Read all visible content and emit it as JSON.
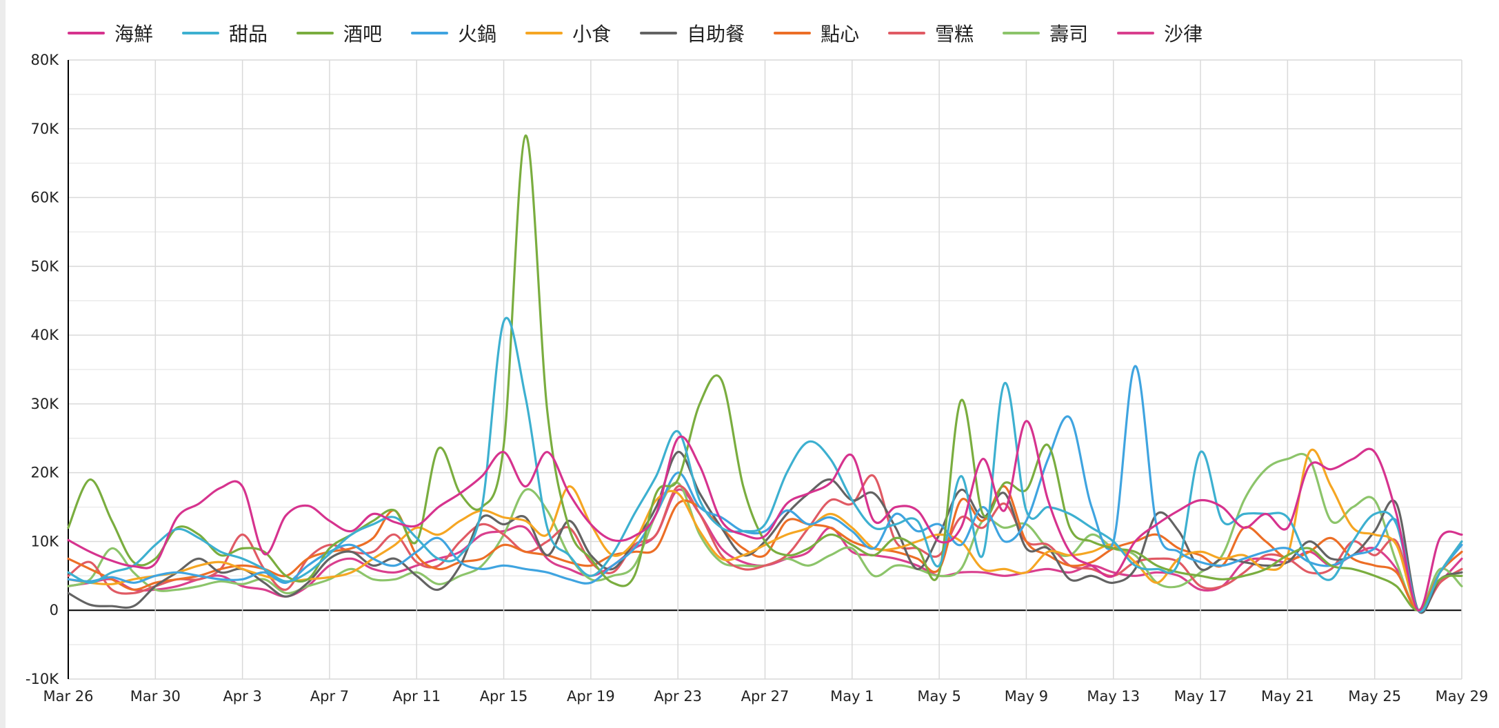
{
  "chart_data": {
    "type": "line",
    "title": "",
    "xlabel": "",
    "ylabel": "",
    "ylim": [
      -10000,
      80000
    ],
    "yticks": [
      -10000,
      0,
      10000,
      20000,
      30000,
      40000,
      50000,
      60000,
      70000,
      80000
    ],
    "ytick_labels": [
      "-10K",
      "0",
      "10K",
      "20K",
      "30K",
      "40K",
      "50K",
      "60K",
      "70K",
      "80K"
    ],
    "xrange_days": [
      0,
      64
    ],
    "xtick_labels": [
      {
        "day": 0,
        "label": "Mar 26"
      },
      {
        "day": 4,
        "label": "Mar 30"
      },
      {
        "day": 8,
        "label": "Apr 3"
      },
      {
        "day": 12,
        "label": "Apr 7"
      },
      {
        "day": 16,
        "label": "Apr 11"
      },
      {
        "day": 20,
        "label": "Apr 15"
      },
      {
        "day": 24,
        "label": "Apr 19"
      },
      {
        "day": 28,
        "label": "Apr 23"
      },
      {
        "day": 32,
        "label": "Apr 27"
      },
      {
        "day": 36,
        "label": "May 1"
      },
      {
        "day": 40,
        "label": "May 5"
      },
      {
        "day": 44,
        "label": "May 9"
      },
      {
        "day": 48,
        "label": "May 13"
      },
      {
        "day": 52,
        "label": "May 17"
      },
      {
        "day": 56,
        "label": "May 21"
      },
      {
        "day": 60,
        "label": "May 25"
      },
      {
        "day": 64,
        "label": "May 29"
      }
    ],
    "grid": true,
    "legend_position": "top-left",
    "series": [
      {
        "name": "海鮮",
        "color": "#d6338e",
        "values": [
          10200,
          8500,
          7200,
          6400,
          6800,
          13500,
          15500,
          17800,
          18000,
          8200,
          13800,
          15200,
          13000,
          11500,
          14000,
          12800,
          12300,
          15000,
          17000,
          19500,
          23000,
          18000,
          23000,
          17000,
          12500,
          10200,
          10800,
          14000,
          25000,
          21000,
          13000,
          11000,
          10800,
          15500,
          17000,
          18500,
          22500,
          13000,
          15000,
          14500,
          10000,
          12000,
          22000,
          14500,
          27500,
          16000,
          8500,
          6500,
          5000,
          10000,
          12500,
          14500,
          16000,
          15000,
          12000,
          14000,
          12000,
          21000,
          20500,
          22000,
          23000,
          14000,
          0,
          10500,
          11000
        ]
      },
      {
        "name": "甜品",
        "color": "#3db0d0",
        "values": [
          5500,
          4000,
          5500,
          6500,
          9500,
          11800,
          10500,
          8500,
          7500,
          6000,
          4200,
          5500,
          8200,
          11000,
          12500,
          13500,
          10500,
          7500,
          8000,
          15000,
          42000,
          31000,
          12000,
          8000,
          5000,
          8200,
          14000,
          19500,
          26000,
          16000,
          12000,
          11500,
          12500,
          20000,
          24500,
          22000,
          16000,
          12000,
          12500,
          13000,
          6500,
          19500,
          8000,
          33000,
          14500,
          15000,
          14000,
          12000,
          10000,
          6500,
          6000,
          7000,
          23000,
          13000,
          14000,
          14000,
          13500,
          7000,
          4500,
          10000,
          14000,
          12500,
          0,
          5500,
          10000
        ]
      },
      {
        "name": "酒吧",
        "color": "#7aad3f",
        "values": [
          12000,
          19000,
          13000,
          7000,
          7500,
          12000,
          11000,
          8000,
          9000,
          8500,
          5000,
          4500,
          9000,
          11000,
          13000,
          14500,
          10000,
          23500,
          17000,
          15000,
          24000,
          69000,
          29000,
          12000,
          7500,
          4000,
          5000,
          17000,
          19000,
          30000,
          33500,
          18000,
          10000,
          8000,
          9000,
          11000,
          9500,
          8000,
          10500,
          9000,
          5500,
          30500,
          14000,
          18500,
          17500,
          24000,
          12000,
          10000,
          9000,
          8500,
          6500,
          5500,
          5000,
          4500,
          5000,
          6000,
          8000,
          9000,
          6500,
          6000,
          5000,
          3500,
          0,
          4500,
          5000
        ]
      },
      {
        "name": "火鍋",
        "color": "#3fa4e0",
        "values": [
          4500,
          4200,
          4800,
          4000,
          5000,
          5500,
          5000,
          4500,
          4500,
          5500,
          4000,
          6500,
          8500,
          9500,
          7500,
          6500,
          8500,
          10500,
          7000,
          6000,
          6500,
          6000,
          5500,
          4500,
          4000,
          6500,
          9000,
          14000,
          20000,
          15000,
          13500,
          11500,
          11500,
          14500,
          12500,
          13500,
          11500,
          9000,
          14000,
          11500,
          12500,
          9500,
          15000,
          10000,
          13000,
          22000,
          28000,
          15000,
          10000,
          35500,
          12000,
          8500,
          7000,
          6500,
          7500,
          8500,
          9000,
          7000,
          6500,
          8000,
          9000,
          13000,
          0,
          5500,
          9500
        ]
      },
      {
        "name": "小食",
        "color": "#f5a623",
        "values": [
          4500,
          4000,
          3800,
          4500,
          5000,
          5500,
          6500,
          7000,
          6000,
          5000,
          4200,
          4500,
          4800,
          5500,
          7500,
          9500,
          12000,
          11000,
          13000,
          14500,
          13500,
          13000,
          11000,
          18000,
          12500,
          8000,
          10000,
          16000,
          17000,
          11500,
          7500,
          8000,
          9500,
          11000,
          12000,
          14000,
          12000,
          9000,
          9000,
          10000,
          11000,
          10000,
          6000,
          6000,
          5500,
          8500,
          8000,
          8500,
          9500,
          7000,
          4000,
          7500,
          8500,
          7500,
          8000,
          6000,
          8000,
          23000,
          18000,
          12000,
          11000,
          9500,
          0,
          5500,
          10000
        ]
      },
      {
        "name": "自助餐",
        "color": "#636363",
        "values": [
          2500,
          800,
          600,
          600,
          3500,
          5500,
          7500,
          5500,
          6000,
          4000,
          2000,
          4000,
          7500,
          8500,
          6500,
          7500,
          5000,
          3000,
          6500,
          13500,
          12500,
          13500,
          8000,
          13000,
          8000,
          6000,
          10000,
          15000,
          23000,
          17000,
          12000,
          8000,
          10000,
          14000,
          17000,
          19000,
          16000,
          17000,
          12000,
          6000,
          11000,
          17500,
          13500,
          17000,
          9000,
          9000,
          4500,
          5000,
          4000,
          6000,
          14000,
          11500,
          6000,
          7500,
          7000,
          6500,
          7000,
          10000,
          7500,
          8000,
          11500,
          15500,
          0,
          4500,
          5500
        ]
      },
      {
        "name": "點心",
        "color": "#ec6e26",
        "values": [
          7500,
          6000,
          4500,
          3000,
          4000,
          4500,
          5000,
          6000,
          6500,
          6000,
          5000,
          7500,
          8500,
          9000,
          10500,
          14500,
          8000,
          6000,
          7000,
          7500,
          9500,
          8500,
          8000,
          7000,
          6500,
          8000,
          8500,
          9000,
          15500,
          15000,
          12000,
          9000,
          8000,
          13000,
          12500,
          12000,
          10000,
          9000,
          8500,
          7500,
          6000,
          16000,
          13000,
          18000,
          10000,
          8000,
          6500,
          7000,
          9000,
          10000,
          11000,
          9000,
          8000,
          6500,
          12000,
          10000,
          7500,
          8500,
          10500,
          7500,
          6500,
          5500,
          0,
          5500,
          8500
        ]
      },
      {
        "name": "雪糕",
        "color": "#e05a64",
        "values": [
          5000,
          7000,
          3000,
          2500,
          3500,
          4500,
          4500,
          6000,
          11000,
          6000,
          3000,
          7500,
          9500,
          8500,
          8500,
          11000,
          7000,
          6500,
          10000,
          12500,
          11000,
          8500,
          10000,
          12000,
          7000,
          5500,
          9500,
          11000,
          18000,
          14000,
          8000,
          6000,
          6500,
          8000,
          12000,
          16000,
          15500,
          19500,
          10000,
          9000,
          8000,
          13500,
          12000,
          15500,
          10000,
          9500,
          6500,
          6000,
          5000,
          7000,
          7500,
          7000,
          3500,
          3500,
          5500,
          8000,
          7500,
          5500,
          6000,
          10000,
          8000,
          10000,
          0,
          4000,
          6000
        ]
      },
      {
        "name": "壽司",
        "color": "#8cc46a",
        "values": [
          3500,
          4500,
          9000,
          5500,
          3000,
          3000,
          3500,
          4200,
          3800,
          4500,
          2500,
          3500,
          4500,
          6000,
          4500,
          4500,
          5500,
          3800,
          5000,
          6500,
          11000,
          17500,
          14500,
          8000,
          4500,
          5000,
          6500,
          14000,
          18500,
          11000,
          7000,
          6500,
          6500,
          7500,
          6500,
          8000,
          9000,
          5000,
          6500,
          6000,
          5000,
          6000,
          13000,
          12000,
          12500,
          9000,
          8000,
          11000,
          9000,
          8000,
          4000,
          3500,
          5500,
          8000,
          16000,
          20500,
          22000,
          22000,
          13000,
          15000,
          16000,
          7000,
          0,
          6000,
          3500
        ]
      },
      {
        "name": "沙律",
        "color": "#d93f8e",
        "values": [
          3500,
          4000,
          4500,
          3000,
          3000,
          3500,
          4500,
          5000,
          3500,
          3000,
          2000,
          3500,
          6500,
          7500,
          6000,
          5500,
          6500,
          7500,
          8500,
          11000,
          11500,
          12000,
          7500,
          6000,
          5000,
          6500,
          9000,
          11000,
          17500,
          14000,
          9000,
          7000,
          6500,
          7500,
          8500,
          12000,
          8500,
          8000,
          7500,
          6500,
          5000,
          5500,
          5500,
          5000,
          5500,
          6000,
          5500,
          6500,
          5500,
          5000,
          5500,
          5000,
          3000,
          3500,
          7000,
          7500,
          7000,
          8500,
          6500,
          8000,
          9000,
          6000,
          0,
          4000,
          7500
        ]
      }
    ]
  }
}
